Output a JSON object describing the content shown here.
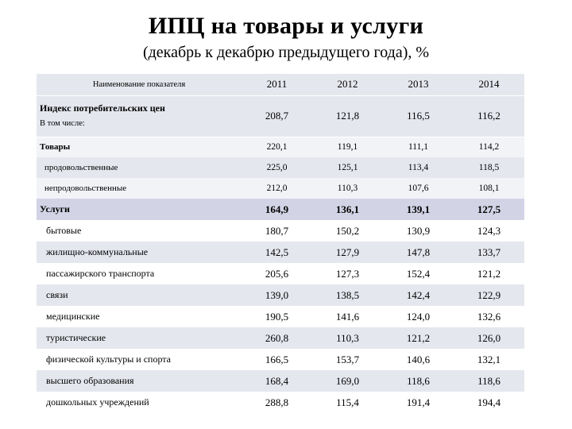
{
  "title": "ИПЦ на товары и услуги",
  "subtitle": "(декабрь к декабрю предыдущего года), %",
  "table": {
    "header_name": "Наименование показателя",
    "years": [
      "2011",
      "2012",
      "2013",
      "2014"
    ],
    "cpi": {
      "label": "Индекс потребительских цен",
      "sub": "В том числе:",
      "values": [
        "208,7",
        "121,8",
        "116,5",
        "116,2"
      ]
    },
    "goods": [
      {
        "label": "Товары",
        "values": [
          "220,1",
          "119,1",
          "111,1",
          "114,2"
        ]
      },
      {
        "label": "продовольственные",
        "values": [
          "225,0",
          "125,1",
          "113,4",
          "118,5"
        ]
      },
      {
        "label": "непродовольственные",
        "values": [
          "212,0",
          "110,3",
          "107,6",
          "108,1"
        ]
      }
    ],
    "services": [
      {
        "label": "Услуги",
        "values": [
          "164,9",
          "136,1",
          "139,1",
          "127,5"
        ]
      },
      {
        "label": "бытовые",
        "values": [
          "180,7",
          "150,2",
          "130,9",
          "124,3"
        ]
      },
      {
        "label": "жилищно-коммунальные",
        "values": [
          "142,5",
          "127,9",
          "147,8",
          "133,7"
        ]
      },
      {
        "label": "пассажирского транспорта",
        "values": [
          "205,6",
          "127,3",
          "152,4",
          "121,2"
        ]
      },
      {
        "label": "связи",
        "values": [
          "139,0",
          "138,5",
          "142,4",
          "122,9"
        ]
      },
      {
        "label": "медицинские",
        "values": [
          "190,5",
          "141,6",
          "124,0",
          "132,6"
        ]
      },
      {
        "label": "туристические",
        "values": [
          "260,8",
          "110,3",
          "121,2",
          "126,0"
        ]
      },
      {
        "label": "физической культуры и спорта",
        "values": [
          "166,5",
          "153,7",
          "140,6",
          "132,1"
        ]
      },
      {
        "label": "высшего образования",
        "values": [
          "168,4",
          "169,0",
          "118,6",
          "118,6"
        ]
      },
      {
        "label": "дошкольных учреждений",
        "values": [
          "288,8",
          "115,4",
          "191,4",
          "194,4"
        ]
      }
    ]
  }
}
